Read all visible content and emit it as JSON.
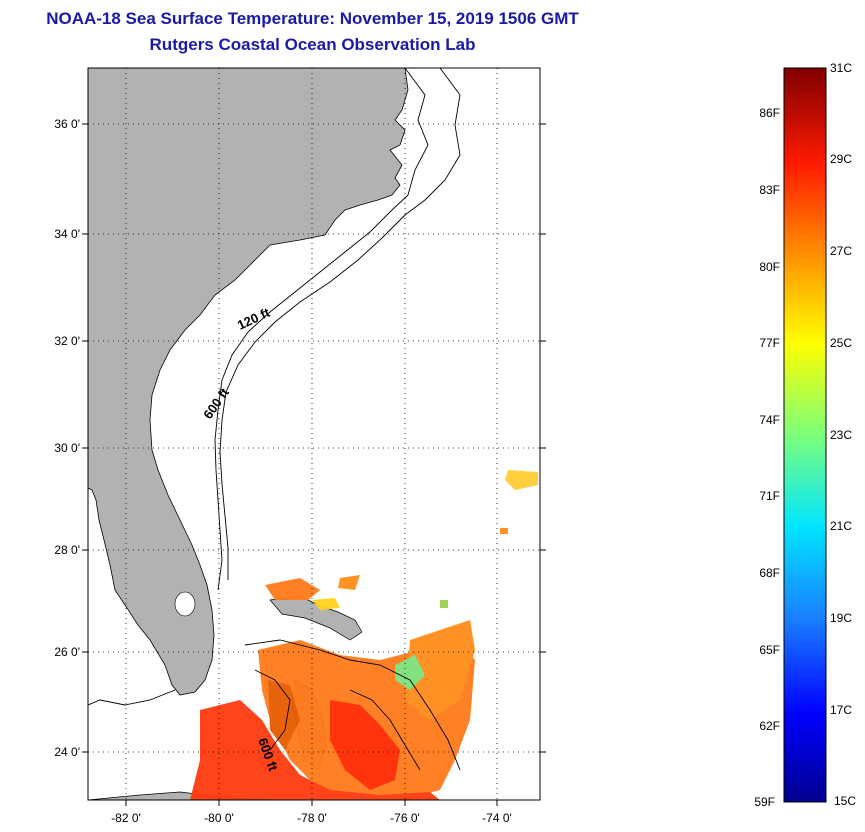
{
  "title": {
    "line1": "NOAA-18 Sea Surface Temperature:  November 15, 2019 1506 GMT",
    "line2": "Rutgers Coastal Ocean Observation Lab"
  },
  "map": {
    "lat_ticks": [
      "36 0'",
      "34 0'",
      "32 0'",
      "30 0'",
      "28 0'",
      "26 0'",
      "24 0'"
    ],
    "lon_ticks": [
      "-82 0'",
      "-80 0'",
      "-78 0'",
      "-76 0'",
      "-74 0'"
    ],
    "contour_labels": [
      "120 ft",
      "600 ft",
      "600 ft"
    ],
    "colors": {
      "land": "#b2b2b2",
      "ocean": "#ffffff",
      "title": "#1a1aa8"
    }
  },
  "colorbar": {
    "celsius_labels": [
      "31C",
      "29C",
      "27C",
      "25C",
      "23C",
      "21C",
      "19C",
      "17C",
      "15C"
    ],
    "fahrenheit_labels": [
      "86F",
      "83F",
      "80F",
      "77F",
      "74F",
      "71F",
      "68F",
      "65F",
      "62F",
      "59F"
    ],
    "range_c": [
      15,
      31
    ]
  }
}
